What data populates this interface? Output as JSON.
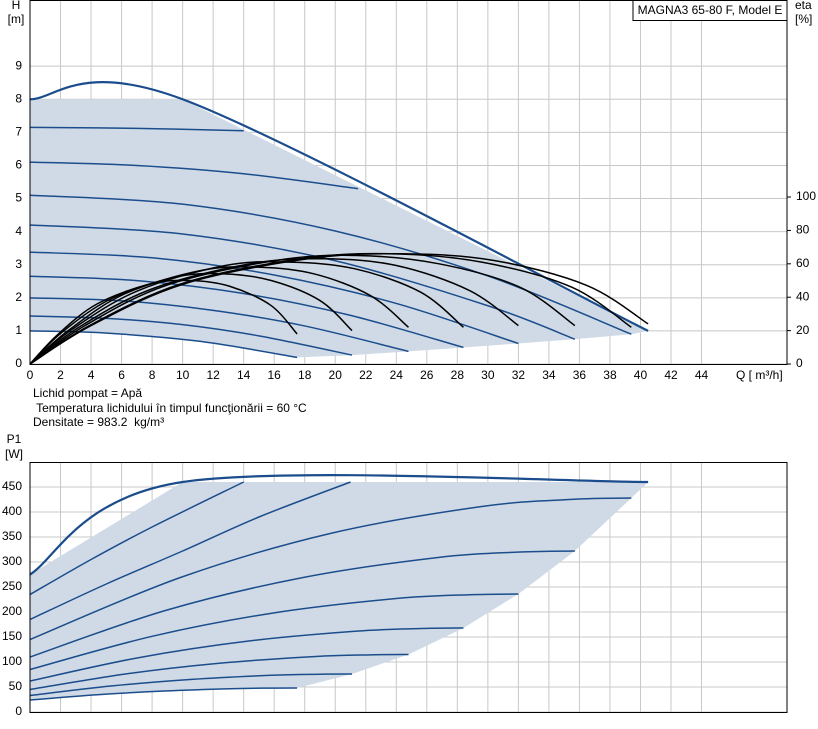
{
  "chart_data": [
    {
      "type": "line",
      "title": "MAGNA3 65-80 F, Model E",
      "ylabel": "H",
      "yunit": "[m]",
      "y2label": "eta",
      "y2unit": "[%]",
      "xlabel": "Q [ m³/h]",
      "annotations": [
        "Lichid pompat = Apă",
        " Temperatura lichidului în timpul funcţionării = 60 °C",
        "Densitate = 983.2  kg/m³"
      ],
      "xlim": [
        0,
        49.6
      ],
      "ylim": [
        0,
        11
      ],
      "y2lim": [
        0,
        218
      ],
      "xticks": [
        0,
        2,
        4,
        6,
        8,
        10,
        12,
        14,
        16,
        18,
        20,
        22,
        24,
        26,
        28,
        30,
        32,
        34,
        36,
        38,
        40,
        42,
        44
      ],
      "yticks": [
        0,
        1,
        2,
        3,
        4,
        5,
        6,
        7,
        8,
        9
      ],
      "y2ticks": [
        0,
        20,
        40,
        60,
        80,
        100
      ],
      "grid": true,
      "shade": "#cfdae6",
      "series": [
        {
          "color": "#1b4d8c",
          "width": 2.2,
          "x": [
            0,
            10,
            40.5
          ],
          "values": [
            8,
            8,
            1.0
          ]
        },
        {
          "color": "#1b4d8c",
          "x": [
            0,
            7,
            14
          ],
          "values": [
            7.15,
            7.12,
            7.05
          ]
        },
        {
          "color": "#1b4d8c",
          "x": [
            0,
            7,
            14,
            21.5
          ],
          "values": [
            6.1,
            6.0,
            5.75,
            5.3
          ]
        },
        {
          "color": "#1b4d8c",
          "x": [
            0,
            10,
            20,
            30,
            39.4
          ],
          "values": [
            5.1,
            4.83,
            4.02,
            2.66,
            0.9
          ]
        },
        {
          "color": "#1b4d8c",
          "x": [
            0,
            10,
            20,
            30,
            35.7
          ],
          "values": [
            4.2,
            3.93,
            3.12,
            1.76,
            0.75
          ]
        },
        {
          "color": "#1b4d8c",
          "x": [
            0,
            8,
            16,
            24,
            32
          ],
          "values": [
            3.38,
            3.21,
            2.69,
            1.83,
            0.62
          ]
        },
        {
          "color": "#1b4d8c",
          "x": [
            0,
            7,
            14,
            21,
            28.4
          ],
          "values": [
            2.65,
            2.52,
            2.13,
            1.47,
            0.5
          ]
        },
        {
          "color": "#1b4d8c",
          "x": [
            0,
            6,
            12,
            18,
            24.8
          ],
          "values": [
            2.0,
            1.91,
            1.62,
            1.15,
            0.38
          ]
        },
        {
          "color": "#1b4d8c",
          "x": [
            0,
            5,
            10,
            15,
            21.1
          ],
          "values": [
            1.45,
            1.38,
            1.19,
            0.85,
            0.27
          ]
        },
        {
          "color": "#1b4d8c",
          "x": [
            0,
            4,
            8,
            12,
            17.5
          ],
          "values": [
            1.0,
            0.96,
            0.83,
            0.63,
            0.2
          ]
        },
        {
          "color": "#000000",
          "axis": "y2",
          "x": [
            0,
            1.8,
            4.4,
            7.9,
            10.5,
            13.1,
            15.8,
            17.5
          ],
          "values": [
            0,
            17.5,
            36,
            48,
            50,
            46.5,
            35,
            18
          ]
        },
        {
          "color": "#000000",
          "axis": "y2",
          "x": [
            0,
            2.1,
            5.3,
            9.5,
            12.7,
            15.8,
            19,
            21.1
          ],
          "values": [
            0,
            19,
            39,
            52,
            54,
            50,
            38,
            20
          ]
        },
        {
          "color": "#000000",
          "axis": "y2",
          "x": [
            0,
            2.5,
            6.2,
            11.2,
            14.9,
            18.6,
            22.3,
            24.8
          ],
          "values": [
            0,
            20,
            42,
            56,
            58,
            54,
            41,
            22
          ]
        },
        {
          "color": "#000000",
          "axis": "y2",
          "x": [
            0,
            2.8,
            7.1,
            12.8,
            17,
            21.3,
            25.6,
            28.4
          ],
          "values": [
            0,
            21,
            44,
            59,
            61,
            57,
            43,
            22
          ]
        },
        {
          "color": "#000000",
          "axis": "y2",
          "x": [
            0,
            3.2,
            8,
            14.4,
            19.2,
            24,
            28.8,
            32
          ],
          "values": [
            0,
            22,
            45,
            60,
            63,
            59,
            44,
            23
          ]
        },
        {
          "color": "#000000",
          "axis": "y2",
          "x": [
            0,
            3.6,
            8.9,
            16.1,
            21.4,
            26.8,
            32.1,
            35.7
          ],
          "values": [
            0,
            23,
            47,
            62,
            65,
            60,
            46,
            23
          ]
        },
        {
          "color": "#000000",
          "axis": "y2",
          "x": [
            0,
            3.9,
            9.9,
            17.7,
            23.6,
            29.6,
            35.5,
            39.4
          ],
          "values": [
            0,
            23,
            48,
            63,
            66,
            61,
            46,
            22
          ]
        },
        {
          "color": "#000000",
          "axis": "y2",
          "x": [
            0,
            4,
            10.1,
            18.2,
            24.3,
            30.4,
            36.5,
            40.5
          ],
          "values": [
            0,
            23,
            48,
            63,
            66,
            62,
            47,
            24
          ]
        }
      ]
    },
    {
      "type": "line",
      "ylabel": "P1",
      "yunit": "[W]",
      "xlim": [
        0,
        49.6
      ],
      "ylim": [
        0,
        500
      ],
      "yticks": [
        0,
        50,
        100,
        150,
        200,
        250,
        300,
        350,
        400,
        450
      ],
      "grid": true,
      "shade": "#cfdae6",
      "series": [
        {
          "color": "#1b4d8c",
          "width": 2.2,
          "x": [
            0,
            10,
            40.5
          ],
          "values": [
            275,
            460,
            460
          ]
        },
        {
          "color": "#1b4d8c",
          "x": [
            0,
            4,
            8,
            14
          ],
          "values": [
            235,
            305,
            370,
            460
          ]
        },
        {
          "color": "#1b4d8c",
          "x": [
            0,
            5,
            10,
            15,
            21
          ],
          "values": [
            185,
            256,
            322,
            390,
            460
          ]
        },
        {
          "color": "#1b4d8c",
          "x": [
            0,
            9.9,
            19.7,
            29.6,
            35.5,
            39.4
          ],
          "values": [
            145,
            269.5,
            357.3,
            411,
            425.2,
            428
          ]
        },
        {
          "color": "#1b4d8c",
          "x": [
            0,
            8.9,
            17.9,
            26.8,
            32.1,
            35.7
          ],
          "values": [
            110,
            203.3,
            269,
            309.3,
            319.9,
            322
          ]
        },
        {
          "color": "#1b4d8c",
          "x": [
            0,
            8,
            16,
            24,
            28.8,
            32
          ],
          "values": [
            85,
            151.4,
            198.3,
            226.9,
            234.5,
            236
          ]
        },
        {
          "color": "#1b4d8c",
          "x": [
            0,
            7.1,
            14.2,
            21.3,
            25.6,
            28.4
          ],
          "values": [
            62,
            108.6,
            141.5,
            161.6,
            166.9,
            168
          ]
        },
        {
          "color": "#1b4d8c",
          "x": [
            0,
            6.2,
            12.4,
            18.6,
            22.3,
            24.8
          ],
          "values": [
            45,
            75.8,
            97.5,
            110.8,
            114.3,
            115
          ]
        },
        {
          "color": "#1b4d8c",
          "x": [
            0,
            5.3,
            10.6,
            15.8,
            19,
            21.1
          ],
          "values": [
            33,
            51.9,
            65.3,
            73.4,
            75.6,
            76
          ]
        },
        {
          "color": "#1b4d8c",
          "x": [
            0,
            4.4,
            8.8,
            13.1,
            15.8,
            17.5
          ],
          "values": [
            24,
            34.6,
            42,
            46.6,
            47.8,
            48
          ]
        }
      ]
    }
  ]
}
